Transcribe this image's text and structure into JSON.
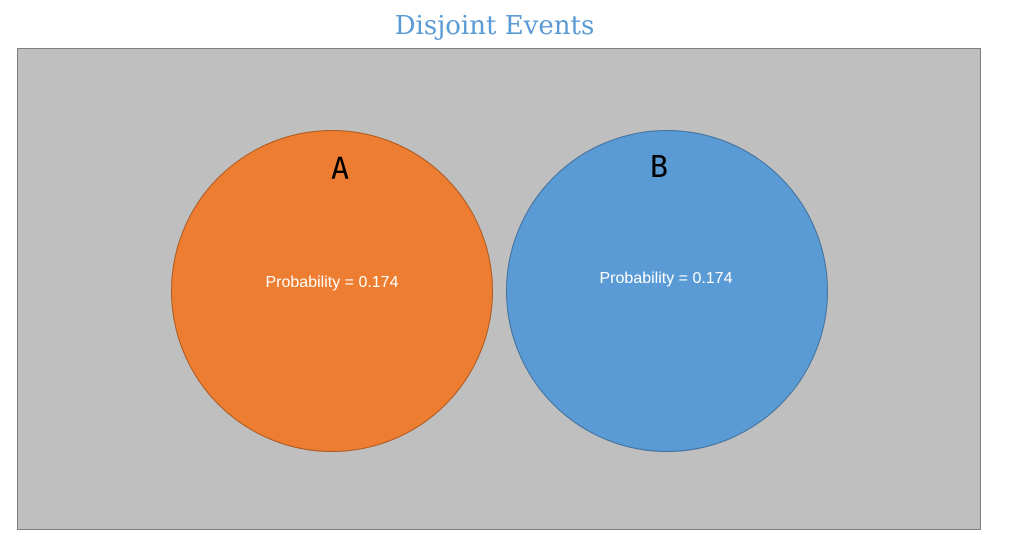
{
  "title": "Disjoint Events",
  "events": [
    {
      "label": "A",
      "probability_text": "Probability = 0.174",
      "probability": 0.174,
      "color": "#ed7d31"
    },
    {
      "label": "B",
      "probability_text": "Probability = 0.174",
      "probability": 0.174,
      "color": "#5b9bd5"
    }
  ],
  "sample_space_color": "#bfbfbf",
  "title_color": "#5b9bd5"
}
